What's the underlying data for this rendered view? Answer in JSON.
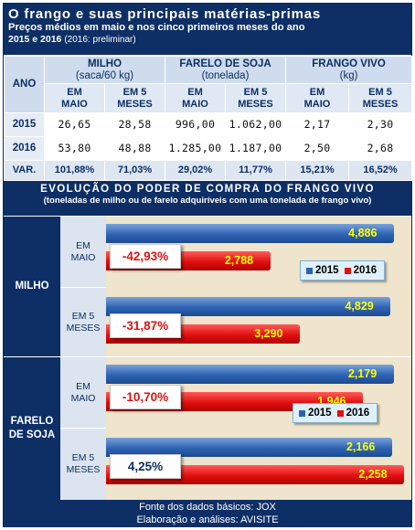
{
  "header": {
    "title": "O frango e suas principais matérias-primas",
    "subtitle_line1": "Preços médios em maio e nos cinco primeiros meses do ano",
    "subtitle_line2": "2015 e 2016",
    "subtitle_note": "(2016: preliminar)"
  },
  "table": {
    "ano_label": "ANO",
    "groups": [
      {
        "name": "MILHO",
        "unit": "(saca/60 kg)"
      },
      {
        "name": "FARELO DE SOJA",
        "unit": "(tonelada)"
      },
      {
        "name": "FRANGO VIVO",
        "unit": "(kg)"
      }
    ],
    "sub_a1": "EM",
    "sub_a2": "MAIO",
    "sub_b1": "EM 5",
    "sub_b2": "MESES",
    "rows": [
      {
        "ano": "2015",
        "values": [
          "26,65",
          "28,58",
          "996,00",
          "1.062,00",
          "2,17",
          "2,30"
        ]
      },
      {
        "ano": "2016",
        "values": [
          "53,80",
          "48,88",
          "1.285,00",
          "1.187,00",
          "2,50",
          "2,68"
        ]
      },
      {
        "ano": "VAR.",
        "values": [
          "101,88%",
          "71,03%",
          "29,02%",
          "11,77%",
          "15,21%",
          "16,52%"
        ]
      }
    ]
  },
  "section": {
    "title": "EVOLUÇÃO DO PODER DE COMPRA DO FRANGO VIVO",
    "subtitle": "(toneladas de milho ou de farelo adquiríveis com uma tonelada de frango vivo)"
  },
  "chart_data": [
    {
      "type": "bar",
      "title": "MILHO",
      "categories": [
        "EM MAIO",
        "EM 5 MESES"
      ],
      "series": [
        {
          "name": "2015",
          "values": [
            4.886,
            4.829
          ],
          "labels": [
            "4,886",
            "4,829"
          ]
        },
        {
          "name": "2016",
          "values": [
            2.788,
            3.29
          ],
          "labels": [
            "2,788",
            "3,290"
          ]
        }
      ],
      "variation": [
        "-42,93%",
        "-31,87%"
      ],
      "legend": [
        "2015",
        "2016"
      ],
      "legend_position": "right",
      "colors": {
        "2015": "#2e63b3",
        "2016": "#e21010"
      }
    },
    {
      "type": "bar",
      "title": "FARELO DE SOJA",
      "categories": [
        "EM MAIO",
        "EM 5 MESES"
      ],
      "series": [
        {
          "name": "2015",
          "values": [
            2.179,
            2.166
          ],
          "labels": [
            "2,179",
            "2,166"
          ]
        },
        {
          "name": "2016",
          "values": [
            1.946,
            2.258
          ],
          "labels": [
            "1,946",
            "2,258"
          ]
        }
      ],
      "variation": [
        "-10,70%",
        "4,25%"
      ],
      "legend": [
        "2015",
        "2016"
      ],
      "legend_position": "right",
      "colors": {
        "2015": "#2e63b3",
        "2016": "#e21010"
      }
    }
  ],
  "panel_labels": {
    "milho": "MILHO",
    "farelo_1": "FARELO",
    "farelo_2": "DE SOJA",
    "em": "EM",
    "maio": "MAIO",
    "em5": "EM 5",
    "meses": "MESES"
  },
  "footer": {
    "line1": "Fonte dos dados básicos: JOX",
    "line2": "Elaboração e análises: AVISITE"
  },
  "colors": {
    "navy": "#0d2f66",
    "pct_negative": "#e21010",
    "pct_positive": "#0d2f66"
  }
}
